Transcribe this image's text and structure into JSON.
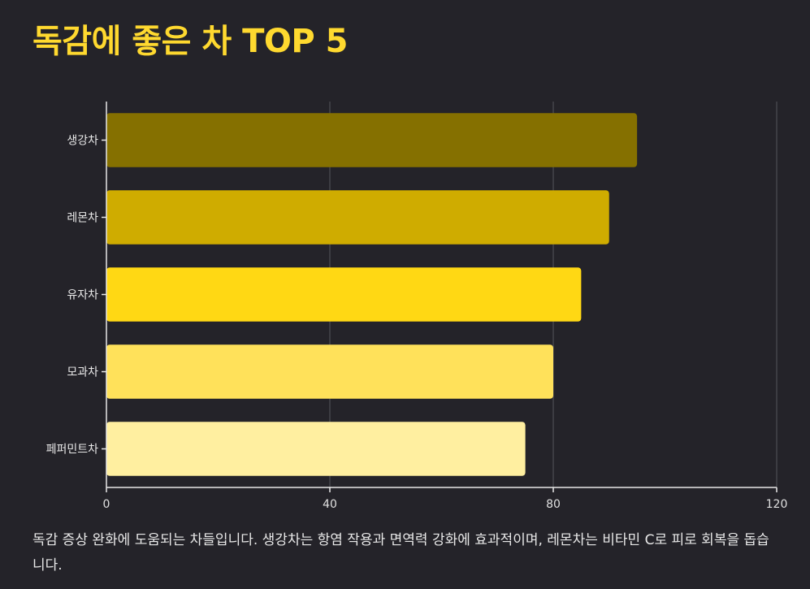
{
  "title": "독감에 좋은 차 TOP 5",
  "description": "독감 증상 완화에 도움되는 차들입니다. 생강차는 항염 작용과 면역력 강화에 효과적이며, 레몬차는 비타민 C로 피로 회복을 돕습니다.",
  "chart_data": {
    "type": "bar",
    "orientation": "horizontal",
    "categories": [
      "생강차",
      "레몬차",
      "유자차",
      "모과차",
      "페퍼민트차"
    ],
    "values": [
      95,
      90,
      85,
      80,
      75
    ],
    "colors": [
      "#857000",
      "#CFAC00",
      "#FFD814",
      "#FFE15A",
      "#FFEFA0"
    ],
    "xlim": [
      0,
      120
    ],
    "xticks": [
      0,
      40,
      80,
      120
    ],
    "xtick_labels": [
      "0",
      "40",
      "80",
      "120"
    ],
    "grid": true,
    "title": "",
    "xlabel": "",
    "ylabel": ""
  }
}
